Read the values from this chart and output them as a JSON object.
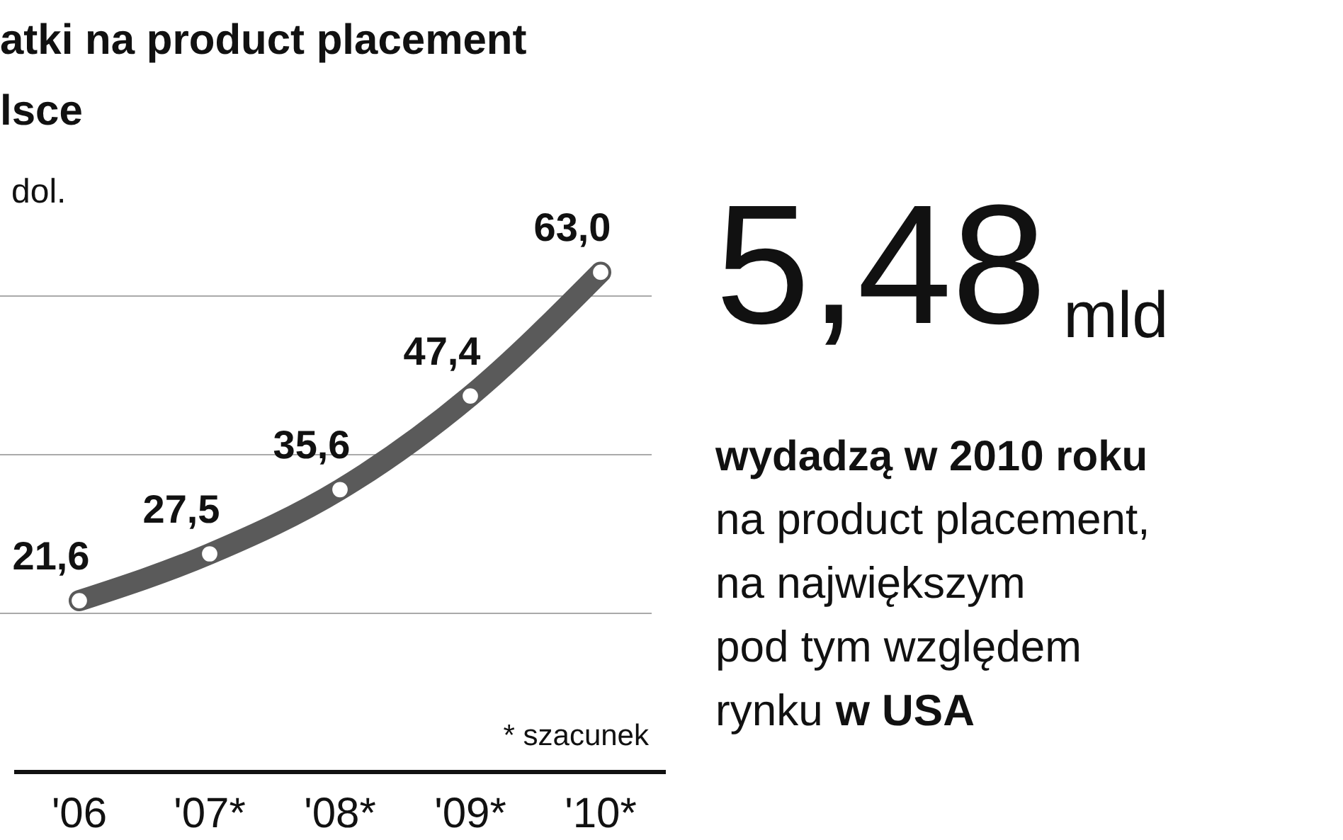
{
  "chart_data": {
    "type": "line",
    "title": "atki na product placement lsce",
    "subtitle": "dol.",
    "categories": [
      "'06",
      "'07*",
      "'08*",
      "'09*",
      "'10*"
    ],
    "series": [
      {
        "color": "#5a5a5a",
        "values": [
          21.6,
          27.5,
          35.6,
          47.4,
          63.0
        ],
        "value_labels": [
          "21,6",
          "27,5",
          "35,6",
          "47,4",
          "63,0"
        ]
      }
    ],
    "ref_lines": [
      {
        "axis": "y",
        "value": 20,
        "color": "#aaaaaa"
      },
      {
        "axis": "y",
        "value": 40,
        "color": "#aaaaaa"
      },
      {
        "axis": "y",
        "value": 60,
        "color": "#aaaaaa"
      }
    ],
    "tick_labels": "x",
    "marker": "circle",
    "line_style": "solid",
    "annotations": [
      "* szacunek",
      "5,48",
      "mld",
      "wydadzą w 2010 roku",
      "na product placement,",
      "na największym",
      "pod tym względem",
      "rynku",
      "w USA"
    ]
  }
}
